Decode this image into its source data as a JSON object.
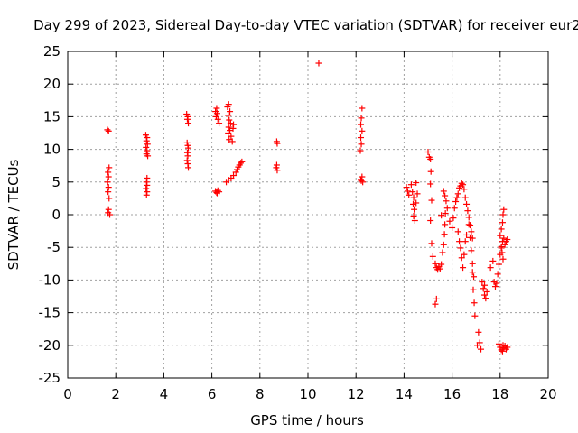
{
  "chart_data": {
    "type": "scatter",
    "title": "Day 299 of 2023, Sidereal Day-to-day VTEC variation (SDTVAR) for receiver eur2",
    "xlabel": "GPS time / hours",
    "ylabel": "SDTVAR / TECUs",
    "xlim": [
      0,
      20
    ],
    "ylim": [
      -25,
      25
    ],
    "xticks": [
      "0",
      "2",
      "4",
      "6",
      "8",
      "10",
      "12",
      "14",
      "16",
      "18",
      "20"
    ],
    "yticks": [
      "25",
      "20",
      "15",
      "10",
      "5",
      "0",
      "-5",
      "-10",
      "-15",
      "-20",
      "-25"
    ],
    "grid": true,
    "marker": "+",
    "color": "#ff0000",
    "series": [
      {
        "name": "SDTVAR",
        "points": [
          [
            1.65,
            13.0
          ],
          [
            1.7,
            12.8
          ],
          [
            1.72,
            7.2
          ],
          [
            1.68,
            6.5
          ],
          [
            1.7,
            5.8
          ],
          [
            1.66,
            5.0
          ],
          [
            1.7,
            4.2
          ],
          [
            1.68,
            3.5
          ],
          [
            1.72,
            2.5
          ],
          [
            1.7,
            0.8
          ],
          [
            1.68,
            0.3
          ],
          [
            1.75,
            0.0
          ],
          [
            3.25,
            12.2
          ],
          [
            3.3,
            11.8
          ],
          [
            3.28,
            11.3
          ],
          [
            3.32,
            10.8
          ],
          [
            3.26,
            10.3
          ],
          [
            3.3,
            9.8
          ],
          [
            3.28,
            9.3
          ],
          [
            3.33,
            9.0
          ],
          [
            3.3,
            5.6
          ],
          [
            3.28,
            5.0
          ],
          [
            3.3,
            4.5
          ],
          [
            3.26,
            4.0
          ],
          [
            3.3,
            3.5
          ],
          [
            3.28,
            3.0
          ],
          [
            4.95,
            15.4
          ],
          [
            5.0,
            15.0
          ],
          [
            4.98,
            14.6
          ],
          [
            5.02,
            14.0
          ],
          [
            4.97,
            11.0
          ],
          [
            5.0,
            10.6
          ],
          [
            5.02,
            10.2
          ],
          [
            4.98,
            9.5
          ],
          [
            5.0,
            9.0
          ],
          [
            4.97,
            8.3
          ],
          [
            5.0,
            7.8
          ],
          [
            5.02,
            7.2
          ],
          [
            6.15,
            15.8
          ],
          [
            6.2,
            16.3
          ],
          [
            6.22,
            15.5
          ],
          [
            6.18,
            15.0
          ],
          [
            6.25,
            14.6
          ],
          [
            6.3,
            14.0
          ],
          [
            6.15,
            3.6
          ],
          [
            6.2,
            3.4
          ],
          [
            6.25,
            3.7
          ],
          [
            6.3,
            3.5
          ],
          [
            6.22,
            3.3
          ],
          [
            6.65,
            16.5
          ],
          [
            6.7,
            16.9
          ],
          [
            6.75,
            15.8
          ],
          [
            6.68,
            15.2
          ],
          [
            6.72,
            14.5
          ],
          [
            6.78,
            14.0
          ],
          [
            6.7,
            13.4
          ],
          [
            6.75,
            12.9
          ],
          [
            6.68,
            12.5
          ],
          [
            6.8,
            12.0
          ],
          [
            6.72,
            11.5
          ],
          [
            6.85,
            11.2
          ],
          [
            6.9,
            13.8
          ],
          [
            6.88,
            13.2
          ],
          [
            6.6,
            5.0
          ],
          [
            6.7,
            5.3
          ],
          [
            6.8,
            5.6
          ],
          [
            6.9,
            6.0
          ],
          [
            7.0,
            6.5
          ],
          [
            7.05,
            6.9
          ],
          [
            7.1,
            7.3
          ],
          [
            7.15,
            7.6
          ],
          [
            7.2,
            7.9
          ],
          [
            7.25,
            8.1
          ],
          [
            8.7,
            11.2
          ],
          [
            8.72,
            10.9
          ],
          [
            8.7,
            7.6
          ],
          [
            8.68,
            7.2
          ],
          [
            8.72,
            6.8
          ],
          [
            10.45,
            23.2
          ],
          [
            12.25,
            16.3
          ],
          [
            12.22,
            14.8
          ],
          [
            12.2,
            13.8
          ],
          [
            12.25,
            12.8
          ],
          [
            12.2,
            11.8
          ],
          [
            12.22,
            10.8
          ],
          [
            12.18,
            9.8
          ],
          [
            12.25,
            5.8
          ],
          [
            12.2,
            5.4
          ],
          [
            12.28,
            5.0
          ],
          [
            12.22,
            5.2
          ],
          [
            14.1,
            4.2
          ],
          [
            14.15,
            3.6
          ],
          [
            14.2,
            3.0
          ],
          [
            14.3,
            4.6
          ],
          [
            14.35,
            3.5
          ],
          [
            14.4,
            2.6
          ],
          [
            14.38,
            1.6
          ],
          [
            14.42,
            0.8
          ],
          [
            14.4,
            -0.2
          ],
          [
            14.45,
            -0.9
          ],
          [
            14.5,
            4.9
          ],
          [
            14.5,
            1.8
          ],
          [
            14.55,
            3.2
          ],
          [
            15.0,
            9.6
          ],
          [
            15.05,
            8.8
          ],
          [
            15.1,
            8.5
          ],
          [
            15.12,
            6.6
          ],
          [
            15.1,
            4.7
          ],
          [
            15.15,
            2.2
          ],
          [
            15.1,
            -0.9
          ],
          [
            15.15,
            -4.4
          ],
          [
            15.2,
            -6.4
          ],
          [
            15.3,
            -7.5
          ],
          [
            15.35,
            -8.1
          ],
          [
            15.4,
            -8.4
          ],
          [
            15.45,
            -7.9
          ],
          [
            15.5,
            -8.3
          ],
          [
            15.55,
            -7.6
          ],
          [
            15.35,
            -12.9
          ],
          [
            15.3,
            -13.7
          ],
          [
            15.65,
            3.6
          ],
          [
            15.7,
            2.9
          ],
          [
            15.75,
            2.1
          ],
          [
            15.8,
            1.0
          ],
          [
            15.72,
            0.2
          ],
          [
            15.7,
            -1.5
          ],
          [
            15.68,
            -3.0
          ],
          [
            15.65,
            -4.6
          ],
          [
            15.6,
            -5.8
          ],
          [
            15.55,
            -0.1
          ],
          [
            15.9,
            -1.0
          ],
          [
            16.0,
            -2.0
          ],
          [
            16.05,
            -0.5
          ],
          [
            16.1,
            1.0
          ],
          [
            16.15,
            2.0
          ],
          [
            16.2,
            2.6
          ],
          [
            16.25,
            3.2
          ],
          [
            16.3,
            4.1
          ],
          [
            16.35,
            4.4
          ],
          [
            16.4,
            4.8
          ],
          [
            16.45,
            4.6
          ],
          [
            16.5,
            3.9
          ],
          [
            16.55,
            2.6
          ],
          [
            16.6,
            1.6
          ],
          [
            16.65,
            0.6
          ],
          [
            16.7,
            -0.4
          ],
          [
            16.75,
            -1.6
          ],
          [
            16.8,
            -2.6
          ],
          [
            16.85,
            -3.6
          ],
          [
            16.25,
            -2.6
          ],
          [
            16.3,
            -4.1
          ],
          [
            16.35,
            -5.1
          ],
          [
            16.4,
            -6.6
          ],
          [
            16.45,
            -8.1
          ],
          [
            16.5,
            -6.1
          ],
          [
            16.55,
            -4.1
          ],
          [
            16.6,
            -3.1
          ],
          [
            16.7,
            -1.5
          ],
          [
            16.75,
            -3.5
          ],
          [
            16.8,
            -5.5
          ],
          [
            16.85,
            -7.5
          ],
          [
            16.9,
            -9.5
          ],
          [
            16.88,
            -11.5
          ],
          [
            16.92,
            -13.5
          ],
          [
            16.95,
            -15.5
          ],
          [
            16.85,
            -8.8
          ],
          [
            17.1,
            -18.0
          ],
          [
            17.15,
            -19.6
          ],
          [
            17.2,
            -20.6
          ],
          [
            17.05,
            -20.0
          ],
          [
            17.25,
            -10.3
          ],
          [
            17.3,
            -11.3
          ],
          [
            17.35,
            -12.3
          ],
          [
            17.4,
            -12.8
          ],
          [
            17.45,
            -11.8
          ],
          [
            17.35,
            -10.8
          ],
          [
            17.6,
            -8.1
          ],
          [
            17.7,
            -7.1
          ],
          [
            17.75,
            -10.3
          ],
          [
            17.8,
            -11.0
          ],
          [
            17.85,
            -10.5
          ],
          [
            17.9,
            -9.1
          ],
          [
            17.95,
            -7.6
          ],
          [
            18.0,
            -6.1
          ],
          [
            18.05,
            -5.1
          ],
          [
            18.1,
            -4.1
          ],
          [
            18.15,
            -3.6
          ],
          [
            18.2,
            -4.6
          ],
          [
            18.25,
            -4.1
          ],
          [
            18.3,
            -3.8
          ],
          [
            18.0,
            -3.2
          ],
          [
            18.05,
            -2.2
          ],
          [
            18.1,
            -1.2
          ],
          [
            18.12,
            0.0
          ],
          [
            18.15,
            0.8
          ],
          [
            18.08,
            -5.8
          ],
          [
            18.12,
            -6.8
          ],
          [
            18.05,
            -4.9
          ],
          [
            17.95,
            -19.8
          ],
          [
            18.0,
            -20.3
          ],
          [
            18.05,
            -20.7
          ],
          [
            18.1,
            -20.9
          ],
          [
            18.15,
            -20.4
          ],
          [
            18.2,
            -20.1
          ],
          [
            18.25,
            -20.6
          ],
          [
            18.3,
            -20.3
          ],
          [
            18.12,
            -20.0
          ]
        ]
      }
    ]
  }
}
